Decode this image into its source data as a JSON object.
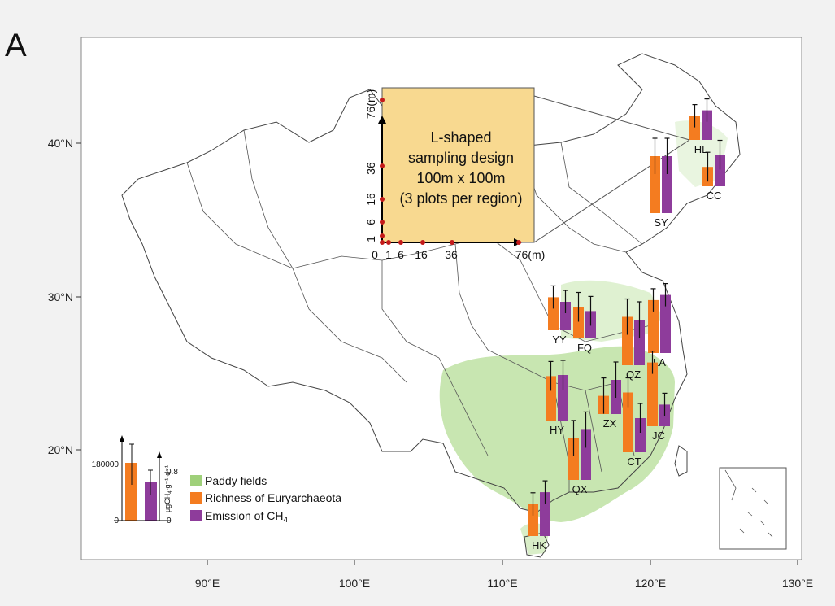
{
  "panel_label": "A",
  "axes": {
    "x_ticks": [
      "90°E",
      "100°E",
      "110°E",
      "120°E",
      "130°E"
    ],
    "y_ticks": [
      "20°N",
      "30°N",
      "40°N"
    ]
  },
  "inset": {
    "title_lines": [
      "L-shaped",
      "sampling design",
      "100m x 100m",
      "(3 plots per region)"
    ],
    "x_ticks": [
      "0",
      "1",
      "6",
      "16",
      "36",
      "76(m)"
    ],
    "y_ticks": [
      "1",
      "6",
      "16",
      "36",
      "76(m)"
    ]
  },
  "legend": {
    "paddy": "Paddy fields",
    "richness": "Richness of Euryarchaeota",
    "emission_prefix": "Emission of CH",
    "emission_sub": "4"
  },
  "scale_bar": {
    "left_top": "180000",
    "left_bottom": "0",
    "right_top": "0.8",
    "right_bottom": "0",
    "unit_line1": "μgCH",
    "unit_sub": "4",
    "unit_line2": "·g⁻¹·d⁻¹"
  },
  "colors": {
    "paddy": "#9fd07a",
    "richness": "#f47c20",
    "emission": "#8e3c9b",
    "inset_fill": "#f8d990",
    "border": "#444444"
  },
  "chart_data": {
    "type": "bar",
    "categories": [
      "HL",
      "CC",
      "SY",
      "YY",
      "FQ",
      "QZ",
      "LA",
      "HY",
      "ZX",
      "JC",
      "CT",
      "QX",
      "HK"
    ],
    "series": [
      {
        "name": "Richness of Euryarchaeota",
        "values": [
          0.42,
          0.34,
          1.0,
          0.58,
          0.55,
          0.85,
          0.93,
          0.78,
          0.32,
          1.12,
          1.05,
          0.73,
          0.56
        ]
      },
      {
        "name": "Emission of CH4",
        "values": [
          0.52,
          0.55,
          1.0,
          0.5,
          0.48,
          0.8,
          1.02,
          0.8,
          0.6,
          0.38,
          0.6,
          0.88,
          0.77
        ]
      }
    ],
    "units_relative_to_scale": "fraction of scale-bar height (180000 / 0.8)"
  }
}
